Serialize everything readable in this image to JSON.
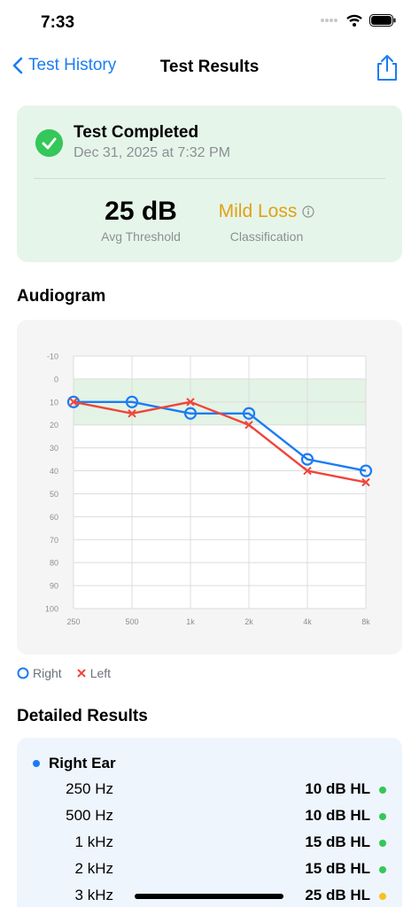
{
  "status": {
    "time": "7:33"
  },
  "nav": {
    "back_label": "Test History",
    "title": "Test Results"
  },
  "summary": {
    "title": "Test Completed",
    "date": "Dec 31, 2025 at 7:32 PM",
    "avg_value": "25 dB",
    "avg_label": "Avg Threshold",
    "classification": "Mild Loss",
    "classification_label": "Classification",
    "classification_color": "#e0a116"
  },
  "audiogram": {
    "title": "Audiogram",
    "legend": {
      "right": "Right",
      "left": "Left"
    }
  },
  "chart_data": {
    "type": "line",
    "categories": [
      "250",
      "500",
      "1k",
      "2k",
      "4k",
      "8k"
    ],
    "y_ticks": [
      "-10",
      "0",
      "10",
      "20",
      "30",
      "40",
      "50",
      "60",
      "70",
      "80",
      "90",
      "100"
    ],
    "ylim": [
      -10,
      100
    ],
    "y_inverted": true,
    "normal_range": [
      0,
      20
    ],
    "grid": true,
    "series": [
      {
        "name": "Right",
        "marker": "circle",
        "color": "#1a7cf4",
        "values": [
          10,
          10,
          15,
          15,
          35,
          40
        ]
      },
      {
        "name": "Left",
        "marker": "x",
        "color": "#f0443a",
        "values": [
          10,
          15,
          10,
          20,
          40,
          45
        ]
      }
    ]
  },
  "details": {
    "title": "Detailed Results",
    "ear": "Right Ear",
    "rows": [
      {
        "freq": "250 Hz",
        "value": "10 dB HL",
        "color": "#34c759"
      },
      {
        "freq": "500 Hz",
        "value": "10 dB HL",
        "color": "#34c759"
      },
      {
        "freq": "1 kHz",
        "value": "15 dB HL",
        "color": "#34c759"
      },
      {
        "freq": "2 kHz",
        "value": "15 dB HL",
        "color": "#34c759"
      },
      {
        "freq": "3 kHz",
        "value": "25 dB HL",
        "color": "#f7c21b"
      }
    ]
  }
}
